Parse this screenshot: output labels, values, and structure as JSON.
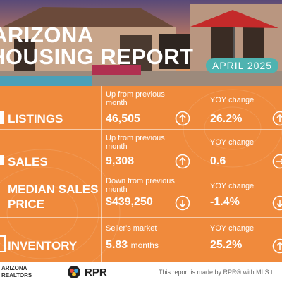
{
  "header": {
    "title_line1": "ARIZONA",
    "title_line2": "HOUSING REPORT",
    "badge": "APRIL 2025"
  },
  "rows": [
    {
      "label": "LISTINGS",
      "metric_note": "Up from previous month",
      "metric_value": "46,505",
      "yoy_note": "YOY change",
      "yoy_value": "26.2%"
    },
    {
      "label": "SALES",
      "metric_note": "Up from previous month",
      "metric_value": "9,308",
      "yoy_note": "YOY change",
      "yoy_value": "0.6"
    },
    {
      "label": "MEDIAN SALES PRICE",
      "metric_note": "Down from previous month",
      "metric_value": "$439,250",
      "yoy_note": "YOY change",
      "yoy_value": "-1.4%"
    },
    {
      "label": "INVENTORY",
      "metric_note": "Seller's market",
      "metric_value": "5.83",
      "metric_unit": "months",
      "yoy_note": "YOY change",
      "yoy_value": "25.2%"
    }
  ],
  "footer": {
    "org": "ARIZONA REALTORS",
    "logo": "RPR",
    "note": "This report is made by RPR® with MLS t"
  }
}
